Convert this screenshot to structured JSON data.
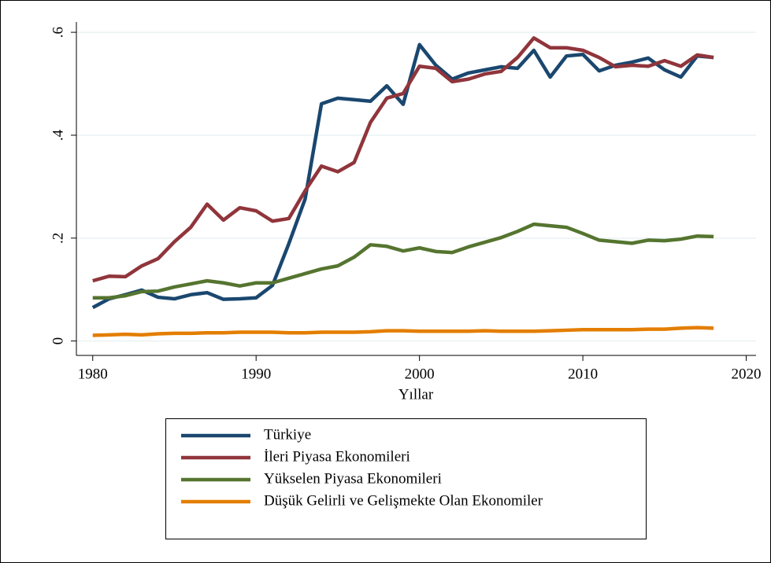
{
  "chart_data": {
    "type": "line",
    "x_label": "Yıllar",
    "x": [
      1980,
      1981,
      1982,
      1983,
      1984,
      1985,
      1986,
      1987,
      1988,
      1989,
      1990,
      1991,
      1992,
      1993,
      1994,
      1995,
      1996,
      1997,
      1998,
      1999,
      2000,
      2001,
      2002,
      2003,
      2004,
      2005,
      2006,
      2007,
      2008,
      2009,
      2010,
      2011,
      2012,
      2013,
      2014,
      2015,
      2016,
      2017,
      2018
    ],
    "series": [
      {
        "name": "Türkiye",
        "color": "#1a476f",
        "values": [
          0.065,
          0.082,
          0.09,
          0.099,
          0.085,
          0.082,
          0.09,
          0.094,
          0.081,
          0.082,
          0.084,
          0.108,
          0.189,
          0.276,
          0.461,
          0.472,
          0.469,
          0.466,
          0.496,
          0.46,
          0.576,
          0.536,
          0.509,
          0.521,
          0.527,
          0.533,
          0.53,
          0.565,
          0.513,
          0.554,
          0.557,
          0.525,
          0.536,
          0.542,
          0.55,
          0.527,
          0.513,
          0.554,
          0.551
        ]
      },
      {
        "name": "İleri Piyasa Ekonomileri",
        "color": "#90353b",
        "values": [
          0.117,
          0.126,
          0.125,
          0.146,
          0.16,
          0.193,
          0.221,
          0.266,
          0.235,
          0.259,
          0.253,
          0.233,
          0.238,
          0.292,
          0.34,
          0.329,
          0.347,
          0.425,
          0.472,
          0.481,
          0.534,
          0.53,
          0.504,
          0.509,
          0.519,
          0.524,
          0.551,
          0.589,
          0.57,
          0.57,
          0.565,
          0.551,
          0.533,
          0.536,
          0.534,
          0.545,
          0.534,
          0.556,
          0.551
        ]
      },
      {
        "name": "Yükselen Piyasa Ekonomileri",
        "color": "#55752f",
        "values": [
          0.084,
          0.084,
          0.088,
          0.096,
          0.097,
          0.105,
          0.111,
          0.117,
          0.113,
          0.107,
          0.113,
          0.113,
          0.122,
          0.131,
          0.14,
          0.146,
          0.163,
          0.187,
          0.184,
          0.175,
          0.181,
          0.174,
          0.172,
          0.183,
          0.192,
          0.201,
          0.213,
          0.227,
          0.224,
          0.221,
          0.209,
          0.196,
          0.193,
          0.19,
          0.196,
          0.195,
          0.198,
          0.204,
          0.203
        ]
      },
      {
        "name": "Düşük Gelirli ve Gelişmekte Olan Ekonomiler",
        "color": "#e37e00",
        "values": [
          0.011,
          0.012,
          0.013,
          0.012,
          0.014,
          0.015,
          0.015,
          0.016,
          0.016,
          0.017,
          0.017,
          0.017,
          0.016,
          0.016,
          0.017,
          0.017,
          0.017,
          0.018,
          0.02,
          0.02,
          0.019,
          0.019,
          0.019,
          0.019,
          0.02,
          0.019,
          0.019,
          0.019,
          0.02,
          0.021,
          0.022,
          0.022,
          0.022,
          0.022,
          0.023,
          0.023,
          0.025,
          0.026,
          0.025
        ]
      }
    ],
    "xlim": [
      1979,
      2020.6
    ],
    "xticks": [
      1980,
      1990,
      2000,
      2010,
      2020
    ],
    "ylim": [
      -0.028,
      0.62
    ],
    "yticks": [
      0,
      {
        "value": 0.2,
        "label": ".2"
      },
      {
        "value": 0.4,
        "label": ".4"
      },
      {
        "value": 0.6,
        "label": ".6"
      }
    ],
    "grid": true,
    "legend": "bottom"
  }
}
